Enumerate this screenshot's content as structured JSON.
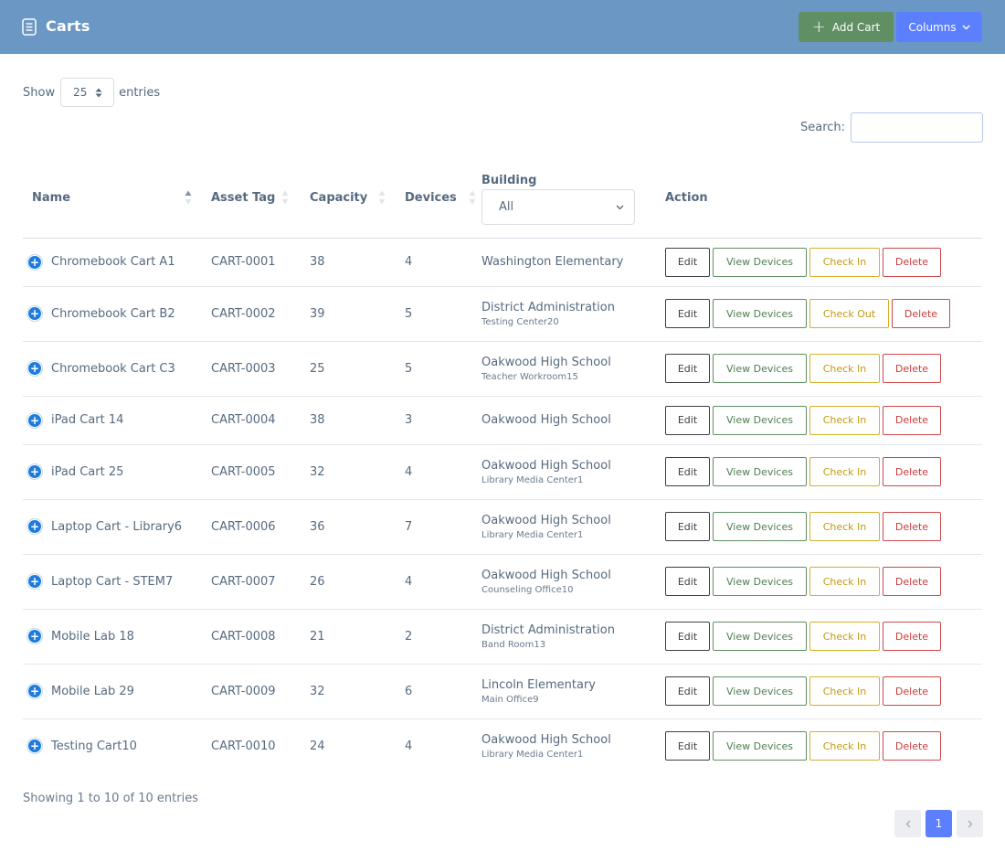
{
  "header": {
    "title": "Carts",
    "title_icon": "clipboard-list-icon",
    "add_label": "Add Cart",
    "columns_label": "Columns"
  },
  "length": {
    "show_label": "Show",
    "value": "25",
    "entries_label": "entries"
  },
  "search": {
    "label": "Search:",
    "value": ""
  },
  "columns": {
    "name": "Name",
    "asset_tag": "Asset Tag",
    "capacity": "Capacity",
    "devices": "Devices",
    "building": "Building",
    "building_filter": "All",
    "action": "Action"
  },
  "action_labels": {
    "edit": "Edit",
    "view": "View Devices",
    "delete": "Delete"
  },
  "rows": [
    {
      "name": "Chromebook Cart A1",
      "asset_tag": "CART-0001",
      "capacity": "38",
      "devices": "4",
      "building": "Washington Elementary",
      "room": "",
      "check": "Check In"
    },
    {
      "name": "Chromebook Cart B2",
      "asset_tag": "CART-0002",
      "capacity": "39",
      "devices": "5",
      "building": "District Administration",
      "room": "Testing Center20",
      "check": "Check Out"
    },
    {
      "name": "Chromebook Cart C3",
      "asset_tag": "CART-0003",
      "capacity": "25",
      "devices": "5",
      "building": "Oakwood High School",
      "room": "Teacher Workroom15",
      "check": "Check In"
    },
    {
      "name": "iPad Cart 14",
      "asset_tag": "CART-0004",
      "capacity": "38",
      "devices": "3",
      "building": "Oakwood High School",
      "room": "",
      "check": "Check In"
    },
    {
      "name": "iPad Cart 25",
      "asset_tag": "CART-0005",
      "capacity": "32",
      "devices": "4",
      "building": "Oakwood High School",
      "room": "Library Media Center1",
      "check": "Check In"
    },
    {
      "name": "Laptop Cart - Library6",
      "asset_tag": "CART-0006",
      "capacity": "36",
      "devices": "7",
      "building": "Oakwood High School",
      "room": "Library Media Center1",
      "check": "Check In"
    },
    {
      "name": "Laptop Cart - STEM7",
      "asset_tag": "CART-0007",
      "capacity": "26",
      "devices": "4",
      "building": "Oakwood High School",
      "room": "Counseling Office10",
      "check": "Check In"
    },
    {
      "name": "Mobile Lab 18",
      "asset_tag": "CART-0008",
      "capacity": "21",
      "devices": "2",
      "building": "District Administration",
      "room": "Band Room13",
      "check": "Check In"
    },
    {
      "name": "Mobile Lab 29",
      "asset_tag": "CART-0009",
      "capacity": "32",
      "devices": "6",
      "building": "Lincoln Elementary",
      "room": "Main Office9",
      "check": "Check In"
    },
    {
      "name": "Testing Cart10",
      "asset_tag": "CART-0010",
      "capacity": "24",
      "devices": "4",
      "building": "Oakwood High School",
      "room": "Library Media Center1",
      "check": "Check In"
    }
  ],
  "footer": {
    "info": "Showing 1 to 10 of 10 entries",
    "current_page": "1"
  },
  "colors": {
    "header_bg": "#6b97c4",
    "primary": "#5b7fff",
    "success": "#5f8f63",
    "warning": "#d4b02a",
    "danger": "#d04848"
  }
}
